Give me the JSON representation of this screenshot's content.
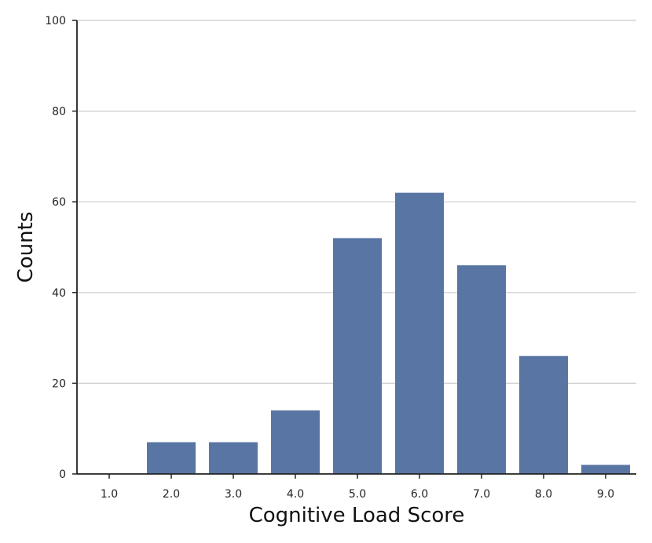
{
  "chart_data": {
    "type": "bar",
    "categories": [
      "1.0",
      "2.0",
      "3.0",
      "4.0",
      "5.0",
      "6.0",
      "7.0",
      "8.0",
      "9.0"
    ],
    "values": [
      0,
      7,
      7,
      14,
      52,
      62,
      46,
      26,
      2
    ],
    "xlabel": "Cognitive Load Score",
    "ylabel": "Counts",
    "ylim": [
      0,
      100
    ],
    "yticks": [
      "0",
      "20",
      "40",
      "60",
      "80",
      "100"
    ],
    "grid": "horizontal",
    "colors": {
      "bar": "#5975a4"
    }
  }
}
